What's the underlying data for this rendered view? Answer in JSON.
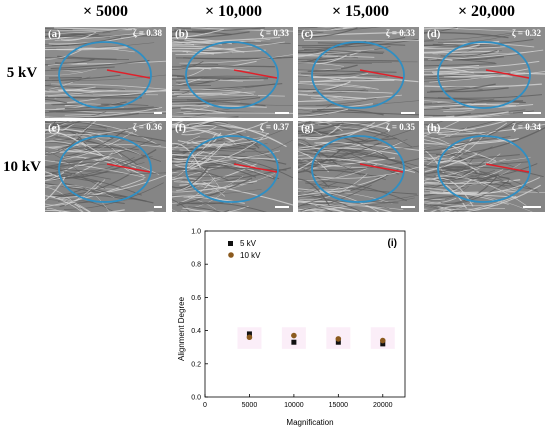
{
  "column_headers": [
    "× 5000",
    "× 10,000",
    "× 15,000",
    "× 20,000"
  ],
  "row_headers": [
    "5 kV",
    "10 kV"
  ],
  "panels": [
    {
      "label": "(a)",
      "zeta": "ζ = 0.38"
    },
    {
      "label": "(b)",
      "zeta": "ζ = 0.33"
    },
    {
      "label": "(c)",
      "zeta": "ζ = 0.33"
    },
    {
      "label": "(d)",
      "zeta": "ζ = 0.32"
    },
    {
      "label": "(e)",
      "zeta": "ζ = 0.36"
    },
    {
      "label": "(f)",
      "zeta": "ζ = 0.37"
    },
    {
      "label": "(g)",
      "zeta": "ζ = 0.35"
    },
    {
      "label": "(h)",
      "zeta": "ζ = 0.34"
    }
  ],
  "colors": {
    "ellipse": "#2f8fc4",
    "alignment_line": "#e0202a",
    "series_5kv": "#111111",
    "series_10kv": "#8b5a1e",
    "highlight": "#fbeef8"
  },
  "chart_data": {
    "type": "scatter",
    "panel_label": "(i)",
    "xlabel": "Magnification",
    "ylabel": "Alignment Degree",
    "xlim": [
      0,
      22500
    ],
    "ylim": [
      0,
      1.0
    ],
    "xticks": [
      0,
      5000,
      10000,
      15000,
      20000
    ],
    "xtick_labels": [
      "0",
      "5000",
      "10000",
      "15000",
      "20000"
    ],
    "yticks": [
      0,
      0.2,
      0.4,
      0.6,
      0.8,
      1.0
    ],
    "ytick_labels": [
      "0.0",
      "0.2",
      "0.4",
      "0.6",
      "0.8",
      "1.0"
    ],
    "legend_position": "top-left",
    "series": [
      {
        "name": "5 kV",
        "marker": "square",
        "x": [
          5000,
          10000,
          15000,
          20000
        ],
        "y": [
          0.38,
          0.33,
          0.33,
          0.32
        ]
      },
      {
        "name": "10 kV",
        "marker": "circle",
        "x": [
          5000,
          10000,
          15000,
          20000
        ],
        "y": [
          0.36,
          0.37,
          0.35,
          0.34
        ]
      }
    ]
  }
}
